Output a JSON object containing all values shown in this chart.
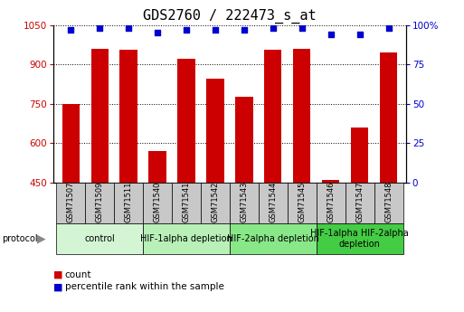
{
  "title": "GDS2760 / 222473_s_at",
  "samples": [
    "GSM71507",
    "GSM71509",
    "GSM71511",
    "GSM71540",
    "GSM71541",
    "GSM71542",
    "GSM71543",
    "GSM71544",
    "GSM71545",
    "GSM71546",
    "GSM71547",
    "GSM71548"
  ],
  "counts": [
    750,
    960,
    955,
    570,
    920,
    845,
    775,
    955,
    960,
    460,
    660,
    945
  ],
  "percentile_ranks": [
    97,
    98,
    98,
    95,
    97,
    97,
    97,
    98,
    98,
    94,
    94,
    98
  ],
  "ylim_left": [
    450,
    1050
  ],
  "ylim_right": [
    0,
    100
  ],
  "yticks_left": [
    450,
    600,
    750,
    900,
    1050
  ],
  "yticks_right": [
    0,
    25,
    50,
    75,
    100
  ],
  "ytick_right_labels": [
    "0",
    "25",
    "50",
    "75",
    "100%"
  ],
  "bar_color": "#cc0000",
  "dot_color": "#0000cc",
  "grid_color": "#000000",
  "tick_area_color": "#c8c8c8",
  "protocol_groups": [
    {
      "label": "control",
      "start": 0,
      "end": 2,
      "color": "#d4f5d4"
    },
    {
      "label": "HIF-1alpha depletion",
      "start": 3,
      "end": 5,
      "color": "#b8f0b8"
    },
    {
      "label": "HIF-2alpha depletion",
      "start": 6,
      "end": 8,
      "color": "#88e888"
    },
    {
      "label": "HIF-1alpha HIF-2alpha\ndepletion",
      "start": 9,
      "end": 11,
      "color": "#44cc44"
    }
  ],
  "legend_count_color": "#cc0000",
  "legend_dot_color": "#0000cc",
  "title_fontsize": 11,
  "tick_fontsize": 7.5,
  "sample_fontsize": 6,
  "protocol_fontsize": 7,
  "legend_fontsize": 7.5
}
